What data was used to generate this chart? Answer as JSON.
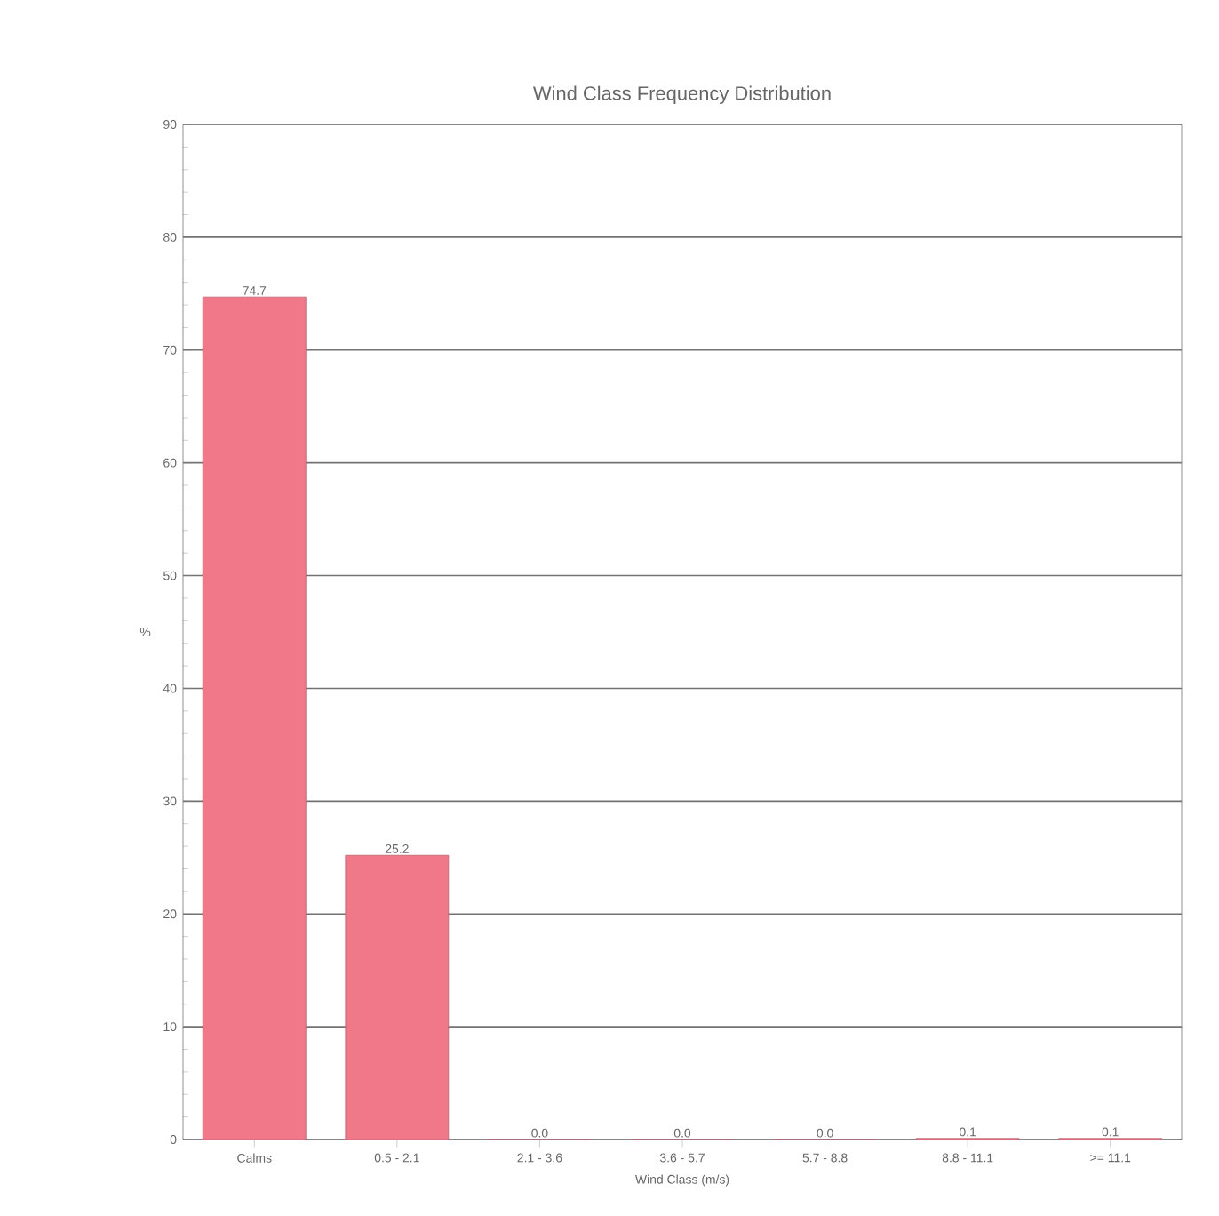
{
  "chart_data": {
    "type": "bar",
    "title": "Wind Class Frequency Distribution",
    "xlabel": "Wind Class (m/s)",
    "ylabel": "%",
    "categories": [
      "Calms",
      "0.5 - 2.1",
      "2.1 - 3.6",
      "3.6 - 5.7",
      "5.7 - 8.8",
      "8.8 - 11.1",
      ">= 11.1"
    ],
    "values": [
      74.7,
      25.2,
      0.0,
      0.0,
      0.0,
      0.1,
      0.1
    ],
    "color": "#f07888",
    "ylim": [
      0,
      90
    ],
    "yticks": [
      0,
      10,
      20,
      30,
      40,
      50,
      60,
      70,
      80,
      90
    ],
    "value_labels": [
      "74.7",
      "25.2",
      "0.0",
      "0.0",
      "0.0",
      "0.1",
      "0.1"
    ],
    "grid": "y"
  }
}
